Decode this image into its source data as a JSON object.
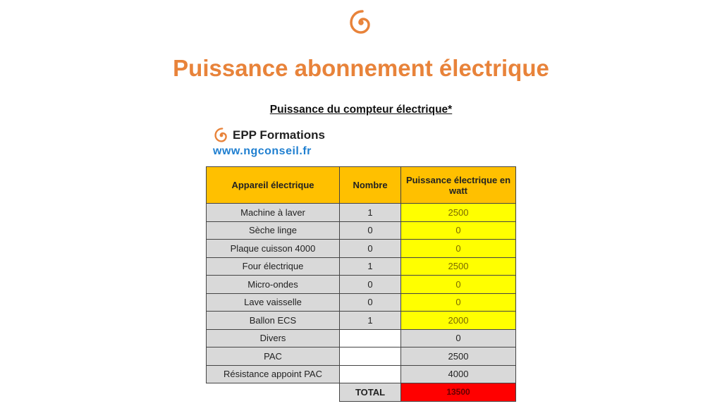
{
  "title": "Puissance abonnement électrique",
  "subtitle": "Puissance du compteur électrique*",
  "brand": {
    "name": "EPP Formations",
    "url": "www.ngconseil.fr",
    "color": "#E8833A"
  },
  "table": {
    "headers": [
      "Appareil électrique",
      "Nombre",
      "Puissance électrique en watt"
    ],
    "rows": [
      {
        "appareil": "Machine à laver",
        "nombre": "1",
        "puissance": "2500",
        "hl": true
      },
      {
        "appareil": "Sèche linge",
        "nombre": "0",
        "puissance": "0",
        "hl": true
      },
      {
        "appareil": "Plaque cuisson 4000",
        "nombre": "0",
        "puissance": "0",
        "hl": true
      },
      {
        "appareil": "Four électrique",
        "nombre": "1",
        "puissance": "2500",
        "hl": true
      },
      {
        "appareil": "Micro-ondes",
        "nombre": "0",
        "puissance": "0",
        "hl": true
      },
      {
        "appareil": "Lave vaisselle",
        "nombre": "0",
        "puissance": "0",
        "hl": true
      },
      {
        "appareil": "Ballon ECS",
        "nombre": "1",
        "puissance": "2000",
        "hl": true
      },
      {
        "appareil": "Divers",
        "nombre": "",
        "puissance": "0",
        "hl": false
      },
      {
        "appareil": "PAC",
        "nombre": "",
        "puissance": "2500",
        "hl": false
      },
      {
        "appareil": "Résistance appoint PAC",
        "nombre": "",
        "puissance": "4000",
        "hl": false
      }
    ],
    "total_label": "TOTAL",
    "total_value": "13500"
  }
}
